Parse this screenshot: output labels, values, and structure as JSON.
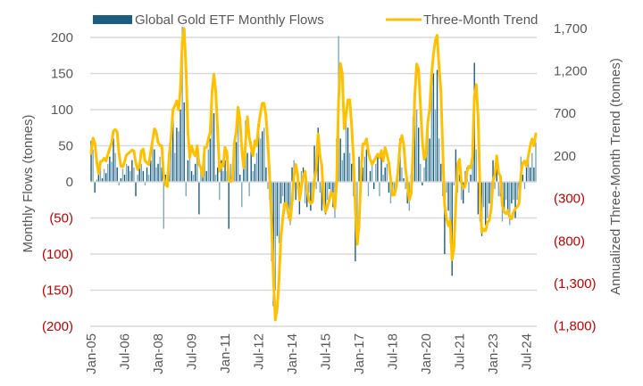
{
  "chart_data": {
    "type": "bar+line",
    "legend": {
      "position": "top",
      "entries": [
        "Global Gold ETF Monthly Flows",
        "Three-Month Trend"
      ]
    },
    "colors": {
      "flows_dark": "#1b5e7f",
      "flows_light": "#7ea9bf",
      "trend": "#ffc000",
      "grid": "#d9d9d9",
      "negative_label": "#c00000",
      "label": "#595959"
    },
    "grid": true,
    "x": {
      "start": "Jan-05",
      "end": "Dec-24",
      "frequency": "monthly",
      "tick_labels": [
        "Jan-05",
        "Jul-06",
        "Jan-08",
        "Jul-09",
        "Jan-11",
        "Jul-12",
        "Jan-14",
        "Jul-15",
        "Jan-17",
        "Jul-18",
        "Jan-20",
        "Jul-21",
        "Jan-23",
        "Jul-24"
      ],
      "tick_month_index": [
        0,
        18,
        36,
        54,
        72,
        90,
        108,
        126,
        144,
        162,
        180,
        198,
        216,
        234
      ]
    },
    "y_left": {
      "label": "Monthly Flows (tonnes)",
      "range": [
        -200,
        200
      ],
      "ticks": [
        200,
        150,
        100,
        50,
        0,
        -50,
        -100,
        -150,
        -200
      ],
      "tick_labels": [
        "200",
        "150",
        "100",
        "50",
        "0",
        "(50)",
        "(100)",
        "(150)",
        "(200)"
      ]
    },
    "y_right": {
      "label": "Annualized Three-Month Trend (tonnes)",
      "range": [
        -1800,
        1700
      ],
      "ticks": [
        1700,
        1200,
        700,
        200,
        -300,
        -800,
        -1300,
        -1800
      ],
      "tick_labels": [
        "1,700",
        "1,200",
        "700",
        "200",
        "(300)",
        "(800)",
        "(1,300)",
        "(1,800)"
      ]
    },
    "series": [
      {
        "name": "Global Gold ETF Monthly Flows",
        "type": "bar",
        "axis": "left",
        "values": [
          57,
          45,
          -15,
          3,
          10,
          20,
          5,
          18,
          12,
          25,
          35,
          28,
          60,
          40,
          20,
          -5,
          5,
          18,
          10,
          25,
          22,
          15,
          30,
          20,
          -20,
          10,
          30,
          25,
          15,
          -5,
          20,
          10,
          30,
          55,
          45,
          20,
          25,
          35,
          20,
          -65,
          10,
          15,
          30,
          60,
          97,
          40,
          75,
          70,
          100,
          215,
          110,
          -20,
          30,
          35,
          15,
          10,
          25,
          45,
          -45,
          15,
          20,
          40,
          15,
          45,
          60,
          135,
          95,
          10,
          20,
          -25,
          30,
          15,
          30,
          15,
          -65,
          25,
          20,
          45,
          55,
          93,
          10,
          -35,
          40,
          85,
          40,
          -20,
          55,
          15,
          25,
          40,
          75,
          60,
          70,
          75,
          20,
          -10,
          -25,
          -110,
          -172,
          -150,
          -75,
          -85,
          -30,
          -20,
          -40,
          -30,
          -50,
          -60,
          20,
          30,
          -25,
          -10,
          -45,
          15,
          20,
          -30,
          -35,
          -15,
          -40,
          -30,
          50,
          -10,
          75,
          -15,
          -40,
          -30,
          -45,
          -25,
          -10,
          -20,
          -35,
          -50,
          60,
          202,
          60,
          30,
          40,
          100,
          75,
          40,
          25,
          -20,
          -110,
          -80,
          35,
          30,
          20,
          35,
          45,
          -20,
          15,
          30,
          -10,
          25,
          40,
          -20,
          45,
          10,
          20,
          25,
          -15,
          -30,
          -20,
          -15,
          -5,
          30,
          60,
          20,
          5,
          -10,
          -30,
          -40,
          10,
          90,
          130,
          100,
          75,
          25,
          -5,
          20,
          40,
          90,
          60,
          140,
          150,
          100,
          155,
          60,
          25,
          -20,
          -100,
          -15,
          -40,
          -85,
          -130,
          -5,
          45,
          -15,
          10,
          -25,
          -30,
          15,
          20,
          -15,
          10,
          50,
          165,
          45,
          -45,
          -55,
          -75,
          -35,
          -60,
          -50,
          -30,
          -25,
          30,
          -10,
          30,
          -20,
          -20,
          -55,
          -40,
          -25,
          -45,
          -60,
          -30,
          -25,
          -50,
          -25,
          -15,
          35,
          10,
          -10,
          20,
          40,
          20,
          40,
          20,
          55
        ]
      },
      {
        "name": "Three-Month Trend",
        "type": "line",
        "axis": "right",
        "values": [
          230,
          410,
          348,
          132,
          -8,
          132,
          140,
          172,
          140,
          220,
          288,
          352,
          492,
          512,
          480,
          220,
          80,
          72,
          132,
          212,
          228,
          248,
          268,
          260,
          120,
          40,
          80,
          260,
          280,
          140,
          120,
          100,
          240,
          380,
          520,
          480,
          360,
          320,
          320,
          -40,
          -140,
          -160,
          220,
          420,
          748,
          788,
          848,
          740,
          980,
          1540,
          1700,
          1220,
          480,
          180,
          320,
          240,
          200,
          320,
          100,
          60,
          -40,
          300,
          300,
          400,
          480,
          960,
          1160,
          960,
          500,
          20,
          100,
          80,
          300,
          240,
          -80,
          -100,
          -80,
          360,
          480,
          772,
          632,
          272,
          60,
          360,
          660,
          420,
          300,
          200,
          380,
          320,
          560,
          700,
          820,
          820,
          660,
          340,
          -60,
          -580,
          -1228,
          -1728,
          -1588,
          -1240,
          -760,
          -540,
          -360,
          -360,
          -480,
          -560,
          -360,
          -40,
          100,
          -20,
          -320,
          -160,
          -40,
          20,
          -180,
          -320,
          -360,
          -340,
          -80,
          40,
          460,
          200,
          80,
          -340,
          -460,
          -400,
          -320,
          -220,
          -260,
          -420,
          -100,
          848,
          1288,
          1168,
          520,
          680,
          860,
          860,
          560,
          180,
          -420,
          -840,
          -620,
          -60,
          340,
          340,
          400,
          240,
          160,
          100,
          140,
          180,
          220,
          180,
          260,
          140,
          300,
          220,
          120,
          -80,
          -260,
          -260,
          -160,
          40,
          340,
          440,
          340,
          60,
          -140,
          -320,
          -240,
          240,
          920,
          1280,
          1220,
          800,
          380,
          160,
          220,
          600,
          760,
          1160,
          1400,
          1560,
          1620,
          1260,
          960,
          260,
          -380,
          -540,
          -620,
          -560,
          -1020,
          -880,
          -360,
          100,
          160,
          -120,
          -180,
          -160,
          20,
          80,
          60,
          180,
          900,
          1040,
          660,
          -220,
          -700,
          -660,
          -680,
          -580,
          -560,
          -420,
          -100,
          -20,
          200,
          0,
          -40,
          -380,
          -460,
          -480,
          -440,
          -520,
          -540,
          -460,
          -420,
          -400,
          -360,
          -20,
          120,
          140,
          80,
          200,
          320,
          400,
          320,
          460
        ]
      }
    ]
  }
}
